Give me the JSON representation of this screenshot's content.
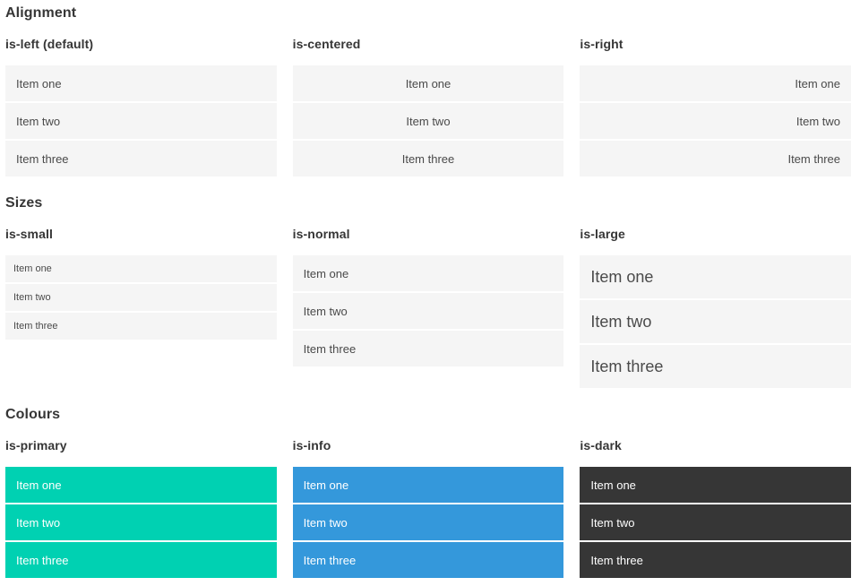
{
  "colors": {
    "page_bg": "#ffffff",
    "heading_text": "#363636",
    "item_default_bg": "#f5f5f5",
    "item_text": "#4a4a4a",
    "primary": "#00d1b2",
    "info": "#3498db",
    "dark": "#363636",
    "colored_item_text": "#ffffff"
  },
  "sections": [
    {
      "title": "Alignment",
      "columns": [
        {
          "subtitle": "is-left (default)",
          "variant": "left",
          "items": [
            "Item one",
            "Item two",
            "Item three"
          ]
        },
        {
          "subtitle": "is-centered",
          "variant": "centered",
          "items": [
            "Item one",
            "Item two",
            "Item three"
          ]
        },
        {
          "subtitle": "is-right",
          "variant": "right",
          "items": [
            "Item one",
            "Item two",
            "Item three"
          ]
        }
      ]
    },
    {
      "title": "Sizes",
      "columns": [
        {
          "subtitle": "is-small",
          "variant": "small",
          "items": [
            "Item one",
            "Item two",
            "Item three"
          ]
        },
        {
          "subtitle": "is-normal",
          "variant": "normal",
          "items": [
            "Item one",
            "Item two",
            "Item three"
          ]
        },
        {
          "subtitle": "is-large",
          "variant": "large",
          "items": [
            "Item one",
            "Item two",
            "Item three"
          ]
        }
      ]
    },
    {
      "title": "Colours",
      "columns": [
        {
          "subtitle": "is-primary",
          "variant": "primary",
          "items": [
            "Item one",
            "Item two",
            "Item three"
          ]
        },
        {
          "subtitle": "is-info",
          "variant": "info",
          "items": [
            "Item one",
            "Item two",
            "Item three"
          ]
        },
        {
          "subtitle": "is-dark",
          "variant": "dark",
          "items": [
            "Item one",
            "Item two",
            "Item three"
          ]
        }
      ]
    }
  ]
}
